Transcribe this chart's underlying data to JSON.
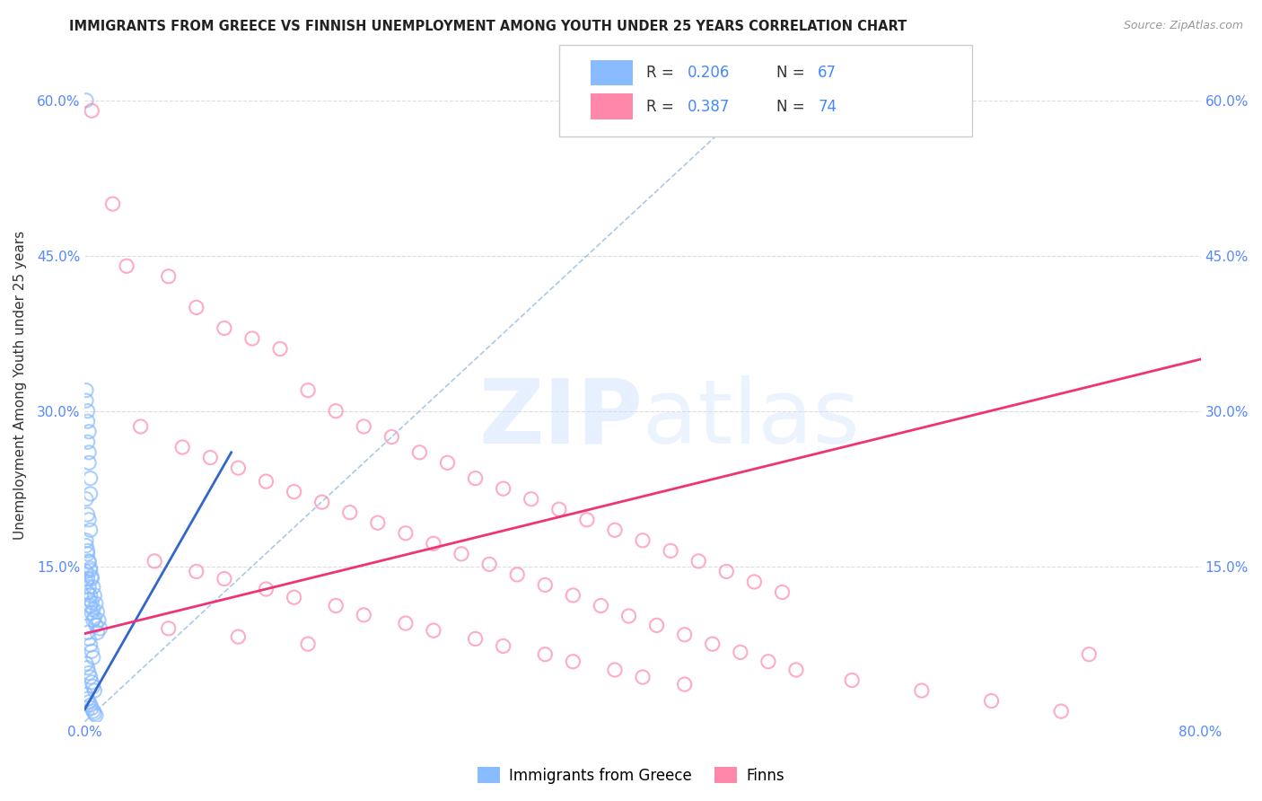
{
  "title": "IMMIGRANTS FROM GREECE VS FINNISH UNEMPLOYMENT AMONG YOUTH UNDER 25 YEARS CORRELATION CHART",
  "source": "Source: ZipAtlas.com",
  "ylabel": "Unemployment Among Youth under 25 years",
  "xlim": [
    0.0,
    0.8
  ],
  "ylim": [
    0.0,
    0.65
  ],
  "color_blue": "#88BBFF",
  "color_pink": "#FF88AA",
  "color_trendline_blue": "#3366CC",
  "color_trendline_pink": "#EE3377",
  "color_diagonal": "#99BBDD",
  "blue_scatter_x": [
    0.001,
    0.001,
    0.002,
    0.002,
    0.003,
    0.003,
    0.004,
    0.004,
    0.001,
    0.002,
    0.003,
    0.001,
    0.002,
    0.003,
    0.004,
    0.001,
    0.002,
    0.003,
    0.004,
    0.005,
    0.001,
    0.002,
    0.003,
    0.004,
    0.005,
    0.006,
    0.001,
    0.002,
    0.003,
    0.004,
    0.005,
    0.006,
    0.001,
    0.002,
    0.003,
    0.004,
    0.005,
    0.006,
    0.007,
    0.001,
    0.002,
    0.003,
    0.004,
    0.005,
    0.006,
    0.007,
    0.008,
    0.001,
    0.002,
    0.003,
    0.004,
    0.005,
    0.006,
    0.007,
    0.008,
    0.009,
    0.001,
    0.002,
    0.003,
    0.004,
    0.005,
    0.006,
    0.007,
    0.008,
    0.009,
    0.01,
    0.011
  ],
  "blue_scatter_y": [
    0.6,
    0.32,
    0.29,
    0.27,
    0.26,
    0.25,
    0.235,
    0.22,
    0.31,
    0.3,
    0.28,
    0.215,
    0.2,
    0.195,
    0.185,
    0.175,
    0.165,
    0.155,
    0.148,
    0.14,
    0.135,
    0.125,
    0.118,
    0.112,
    0.105,
    0.098,
    0.092,
    0.086,
    0.08,
    0.074,
    0.068,
    0.062,
    0.056,
    0.052,
    0.047,
    0.043,
    0.038,
    0.034,
    0.03,
    0.026,
    0.022,
    0.019,
    0.016,
    0.013,
    0.01,
    0.008,
    0.006,
    0.145,
    0.138,
    0.13,
    0.122,
    0.115,
    0.108,
    0.1,
    0.093,
    0.086,
    0.17,
    0.162,
    0.154,
    0.146,
    0.138,
    0.13,
    0.122,
    0.114,
    0.106,
    0.098,
    0.09
  ],
  "pink_scatter_x": [
    0.005,
    0.02,
    0.03,
    0.06,
    0.08,
    0.1,
    0.12,
    0.14,
    0.16,
    0.18,
    0.2,
    0.22,
    0.24,
    0.26,
    0.28,
    0.3,
    0.32,
    0.34,
    0.36,
    0.38,
    0.4,
    0.42,
    0.44,
    0.46,
    0.48,
    0.5,
    0.04,
    0.07,
    0.09,
    0.11,
    0.13,
    0.15,
    0.17,
    0.19,
    0.21,
    0.23,
    0.25,
    0.27,
    0.29,
    0.31,
    0.33,
    0.35,
    0.37,
    0.39,
    0.41,
    0.43,
    0.45,
    0.47,
    0.49,
    0.51,
    0.55,
    0.6,
    0.65,
    0.7,
    0.05,
    0.08,
    0.1,
    0.13,
    0.15,
    0.18,
    0.2,
    0.23,
    0.25,
    0.28,
    0.3,
    0.33,
    0.35,
    0.38,
    0.4,
    0.43,
    0.72,
    0.06,
    0.11,
    0.16
  ],
  "pink_scatter_y": [
    0.59,
    0.5,
    0.44,
    0.43,
    0.4,
    0.38,
    0.37,
    0.36,
    0.32,
    0.3,
    0.285,
    0.275,
    0.26,
    0.25,
    0.235,
    0.225,
    0.215,
    0.205,
    0.195,
    0.185,
    0.175,
    0.165,
    0.155,
    0.145,
    0.135,
    0.125,
    0.285,
    0.265,
    0.255,
    0.245,
    0.232,
    0.222,
    0.212,
    0.202,
    0.192,
    0.182,
    0.172,
    0.162,
    0.152,
    0.142,
    0.132,
    0.122,
    0.112,
    0.102,
    0.093,
    0.084,
    0.075,
    0.067,
    0.058,
    0.05,
    0.04,
    0.03,
    0.02,
    0.01,
    0.155,
    0.145,
    0.138,
    0.128,
    0.12,
    0.112,
    0.103,
    0.095,
    0.088,
    0.08,
    0.073,
    0.065,
    0.058,
    0.05,
    0.043,
    0.036,
    0.065,
    0.09,
    0.082,
    0.075
  ],
  "blue_trendline": [
    [
      0.0,
      0.012
    ],
    [
      0.105,
      0.26
    ]
  ],
  "pink_trendline": [
    [
      0.0,
      0.085
    ],
    [
      0.8,
      0.35
    ]
  ],
  "diagonal_line": [
    [
      0.0,
      0.0
    ],
    [
      0.52,
      0.65
    ]
  ]
}
